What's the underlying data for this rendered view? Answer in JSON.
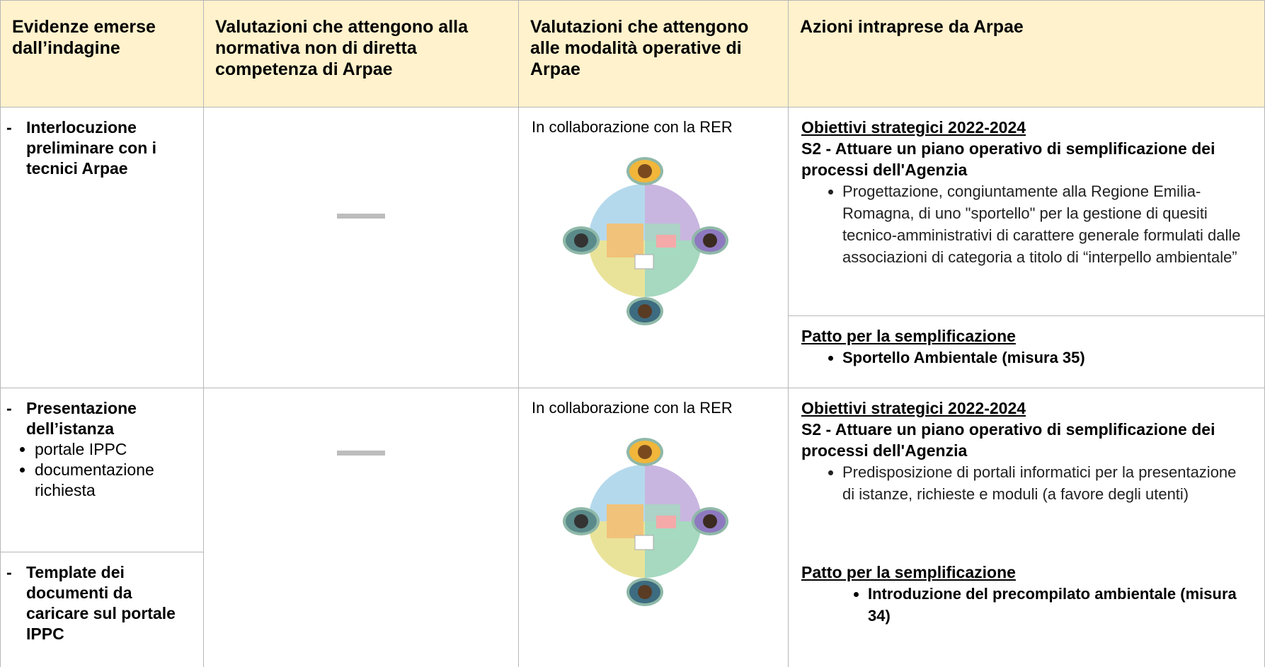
{
  "table": {
    "header": [
      "Evidenze emerse dall’indagine",
      "Valutazioni che attengono alla normativa non di diretta competenza di Arpae",
      "Valutazioni che attengono alle modalità operative di Arpae",
      "Azioni intraprese da Arpae"
    ],
    "rows": [
      {
        "evidence": [
          {
            "marker": "-",
            "title": "Interlocuzione preliminare con i tecnici Arpae",
            "items": []
          }
        ],
        "operative": "In collaborazione con la RER",
        "actions": [
          {
            "heading": "Obiettivi strategici 2022-2024",
            "subheading": "S2 - Attuare un piano operativo di semplificazione dei processi dell'Agenzia",
            "items": [
              "Progettazione, congiuntamente alla Regione Emilia-Romagna, di uno \"sportello\" per la gestione di quesiti tecnico-amministrativi di carattere generale formulati dalle associazioni di categoria a titolo di “interpello ambientale”"
            ]
          },
          {
            "heading": "Patto per la semplificazione",
            "items": [
              "Sportello Ambientale (misura 35)"
            ]
          }
        ]
      },
      {
        "evidence": [
          {
            "marker": "-",
            "title": "Presentazione dell’istanza",
            "items": [
              "portale IPPC",
              "documentazione richiesta"
            ]
          },
          {
            "marker": "-",
            "title": "Template dei documenti da caricare sul portale IPPC",
            "items": []
          }
        ],
        "operative": "In collaborazione con la RER",
        "actions": [
          {
            "heading": "Obiettivi strategici 2022-2024",
            "subheading": "S2 - Attuare un piano operativo di semplificazione dei processi dell'Agenzia",
            "items": [
              "Predisposizione di portali informatici per la presentazione di istanze, richieste e moduli (a favore degli utenti)"
            ]
          },
          {
            "heading": "Patto per la semplificazione",
            "items": [
              "Introduzione del precompilato ambientale (misura 34)"
            ]
          }
        ]
      }
    ]
  }
}
